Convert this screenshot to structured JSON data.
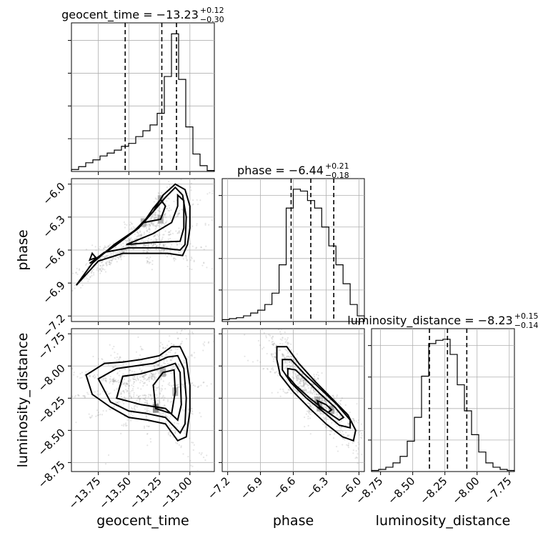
{
  "chart_data": {
    "type": "corner",
    "parameters": [
      {
        "name": "geocent_time",
        "xlabel": "geocent_time",
        "title_main": "geocent_time = −13.23",
        "err_plus": "+0.12",
        "err_minus": "−0.30",
        "median": -13.23,
        "q_low": -13.53,
        "q_high": -13.11,
        "range": [
          -13.97,
          -12.8
        ],
        "ticks": [
          -13.75,
          -13.5,
          -13.25,
          -13.0
        ],
        "tick_labels": [
          "−13.75",
          "−13.50",
          "−13.25",
          "−13.00"
        ],
        "hist_edges_start": -13.97,
        "hist_bin_width": 0.0585,
        "hist_counts": [
          2,
          5,
          9,
          12,
          16,
          19,
          22,
          26,
          29,
          36,
          42,
          48,
          60,
          98,
          142,
          95,
          46,
          18,
          6,
          1
        ]
      },
      {
        "name": "phase",
        "xlabel": "phase",
        "ylabel": "phase",
        "title_main": "phase = −6.44",
        "err_plus": "+0.21",
        "err_minus": "−0.18",
        "median": -6.44,
        "q_low": -6.62,
        "q_high": -6.23,
        "range": [
          -7.25,
          -5.95
        ],
        "ticks": [
          -7.2,
          -6.9,
          -6.6,
          -6.3,
          -6.0
        ],
        "tick_labels": [
          "−7.2",
          "−6.9",
          "−6.6",
          "−6.3",
          "−6.0"
        ],
        "hist_edges_start": -7.25,
        "hist_bin_width": 0.065,
        "hist_counts": [
          2,
          3,
          4,
          6,
          9,
          12,
          18,
          30,
          60,
          120,
          140,
          138,
          128,
          120,
          100,
          80,
          60,
          40,
          18,
          6
        ]
      },
      {
        "name": "luminosity_distance",
        "xlabel": "luminosity_distance",
        "ylabel": "luminosity_distance",
        "title_main": "luminosity_distance = −8.23",
        "err_plus": "+0.15",
        "err_minus": "−0.14",
        "median": -8.23,
        "q_low": -8.37,
        "q_high": -8.08,
        "range": [
          -8.82,
          -7.71
        ],
        "ticks": [
          -8.75,
          -8.5,
          -8.25,
          -8.0,
          -7.75
        ],
        "tick_labels": [
          "−8.75",
          "−8.50",
          "−8.25",
          "−8.00",
          "−7.75"
        ],
        "hist_edges_start": -8.82,
        "hist_bin_width": 0.0555,
        "hist_counts": [
          1,
          2,
          4,
          8,
          14,
          28,
          50,
          88,
          118,
          121,
          122,
          108,
          80,
          56,
          34,
          18,
          8,
          4,
          2,
          1
        ]
      }
    ],
    "pairs": [
      {
        "x": "geocent_time",
        "y": "phase",
        "contours": [
          [
            [
              -13.93,
              -6.92
            ],
            [
              -13.8,
              -6.72
            ],
            [
              -13.62,
              -6.55
            ],
            [
              -13.45,
              -6.42
            ],
            [
              -13.3,
              -6.25
            ],
            [
              -13.22,
              -6.1
            ],
            [
              -13.12,
              -6.0
            ],
            [
              -13.04,
              -6.05
            ],
            [
              -13.0,
              -6.2
            ],
            [
              -13.0,
              -6.4
            ],
            [
              -13.02,
              -6.55
            ],
            [
              -13.06,
              -6.65
            ],
            [
              -13.18,
              -6.63
            ],
            [
              -13.35,
              -6.63
            ],
            [
              -13.55,
              -6.63
            ],
            [
              -13.75,
              -6.7
            ],
            [
              -13.93,
              -6.92
            ]
          ],
          [
            [
              -13.82,
              -6.72
            ],
            [
              -13.6,
              -6.55
            ],
            [
              -13.42,
              -6.4
            ],
            [
              -13.3,
              -6.25
            ],
            [
              -13.2,
              -6.12
            ],
            [
              -13.12,
              -6.03
            ],
            [
              -13.06,
              -6.1
            ],
            [
              -13.03,
              -6.3
            ],
            [
              -13.04,
              -6.55
            ],
            [
              -13.08,
              -6.6
            ],
            [
              -13.25,
              -6.58
            ],
            [
              -13.5,
              -6.58
            ],
            [
              -13.7,
              -6.62
            ],
            [
              -13.82,
              -6.72
            ]
          ],
          [
            [
              -13.52,
              -6.55
            ],
            [
              -13.3,
              -6.45
            ],
            [
              -13.15,
              -6.35
            ],
            [
              -13.1,
              -6.2
            ],
            [
              -13.1,
              -6.1
            ],
            [
              -13.05,
              -6.15
            ],
            [
              -13.05,
              -6.4
            ],
            [
              -13.08,
              -6.52
            ],
            [
              -13.3,
              -6.53
            ],
            [
              -13.52,
              -6.55
            ]
          ],
          [
            [
              -13.38,
              -6.35
            ],
            [
              -13.3,
              -6.22
            ],
            [
              -13.24,
              -6.14
            ],
            [
              -13.2,
              -6.2
            ],
            [
              -13.24,
              -6.32
            ],
            [
              -13.38,
              -6.35
            ]
          ],
          [
            [
              -13.82,
              -6.69
            ],
            [
              -13.8,
              -6.63
            ],
            [
              -13.77,
              -6.67
            ],
            [
              -13.82,
              -6.69
            ]
          ]
        ]
      },
      {
        "x": "geocent_time",
        "y": "luminosity_distance",
        "contours": [
          [
            [
              -13.85,
              -8.07
            ],
            [
              -13.7,
              -7.98
            ],
            [
              -13.55,
              -7.97
            ],
            [
              -13.4,
              -7.95
            ],
            [
              -13.25,
              -7.92
            ],
            [
              -13.15,
              -7.85
            ],
            [
              -13.08,
              -7.85
            ],
            [
              -13.03,
              -7.95
            ],
            [
              -13.0,
              -8.15
            ],
            [
              -13.0,
              -8.35
            ],
            [
              -13.03,
              -8.55
            ],
            [
              -13.1,
              -8.58
            ],
            [
              -13.2,
              -8.45
            ],
            [
              -13.35,
              -8.42
            ],
            [
              -13.5,
              -8.4
            ],
            [
              -13.65,
              -8.32
            ],
            [
              -13.8,
              -8.22
            ],
            [
              -13.85,
              -8.07
            ]
          ],
          [
            [
              -13.75,
              -8.1
            ],
            [
              -13.6,
              -8.02
            ],
            [
              -13.45,
              -8.0
            ],
            [
              -13.3,
              -7.98
            ],
            [
              -13.18,
              -7.93
            ],
            [
              -13.1,
              -7.92
            ],
            [
              -13.05,
              -8.02
            ],
            [
              -13.03,
              -8.25
            ],
            [
              -13.04,
              -8.45
            ],
            [
              -13.08,
              -8.52
            ],
            [
              -13.2,
              -8.4
            ],
            [
              -13.35,
              -8.37
            ],
            [
              -13.5,
              -8.35
            ],
            [
              -13.65,
              -8.28
            ],
            [
              -13.75,
              -8.1
            ]
          ],
          [
            [
              -13.6,
              -8.25
            ],
            [
              -13.55,
              -8.08
            ],
            [
              -13.4,
              -8.06
            ],
            [
              -13.25,
              -8.02
            ],
            [
              -13.12,
              -7.98
            ],
            [
              -13.08,
              -8.05
            ],
            [
              -13.07,
              -8.3
            ],
            [
              -13.1,
              -8.42
            ],
            [
              -13.2,
              -8.33
            ],
            [
              -13.4,
              -8.3
            ],
            [
              -13.6,
              -8.25
            ]
          ],
          [
            [
              -13.28,
              -8.33
            ],
            [
              -13.3,
              -8.15
            ],
            [
              -13.22,
              -8.05
            ],
            [
              -13.13,
              -8.03
            ],
            [
              -13.12,
              -8.2
            ],
            [
              -13.15,
              -8.37
            ],
            [
              -13.28,
              -8.33
            ]
          ]
        ]
      },
      {
        "x": "phase",
        "y": "luminosity_distance",
        "contours": [
          [
            [
              -6.75,
              -7.85
            ],
            [
              -6.66,
              -7.85
            ],
            [
              -6.55,
              -7.98
            ],
            [
              -6.4,
              -8.12
            ],
            [
              -6.25,
              -8.25
            ],
            [
              -6.1,
              -8.38
            ],
            [
              -6.03,
              -8.5
            ],
            [
              -6.05,
              -8.58
            ],
            [
              -6.15,
              -8.55
            ],
            [
              -6.3,
              -8.45
            ],
            [
              -6.45,
              -8.33
            ],
            [
              -6.6,
              -8.2
            ],
            [
              -6.72,
              -8.07
            ],
            [
              -6.75,
              -7.95
            ],
            [
              -6.75,
              -7.85
            ]
          ],
          [
            [
              -6.7,
              -7.95
            ],
            [
              -6.62,
              -7.95
            ],
            [
              -6.5,
              -8.06
            ],
            [
              -6.35,
              -8.18
            ],
            [
              -6.2,
              -8.3
            ],
            [
              -6.08,
              -8.42
            ],
            [
              -6.08,
              -8.48
            ],
            [
              -6.18,
              -8.46
            ],
            [
              -6.32,
              -8.36
            ],
            [
              -6.48,
              -8.25
            ],
            [
              -6.62,
              -8.13
            ],
            [
              -6.7,
              -8.03
            ],
            [
              -6.7,
              -7.95
            ]
          ],
          [
            [
              -6.65,
              -8.02
            ],
            [
              -6.58,
              -8.03
            ],
            [
              -6.48,
              -8.11
            ],
            [
              -6.35,
              -8.22
            ],
            [
              -6.22,
              -8.32
            ],
            [
              -6.14,
              -8.4
            ],
            [
              -6.18,
              -8.42
            ],
            [
              -6.3,
              -8.35
            ],
            [
              -6.45,
              -8.25
            ],
            [
              -6.58,
              -8.15
            ],
            [
              -6.65,
              -8.08
            ],
            [
              -6.65,
              -8.02
            ]
          ],
          [
            [
              -6.38,
              -8.27
            ],
            [
              -6.3,
              -8.3
            ],
            [
              -6.25,
              -8.34
            ],
            [
              -6.28,
              -8.36
            ],
            [
              -6.36,
              -8.32
            ],
            [
              -6.38,
              -8.27
            ]
          ]
        ]
      }
    ]
  }
}
